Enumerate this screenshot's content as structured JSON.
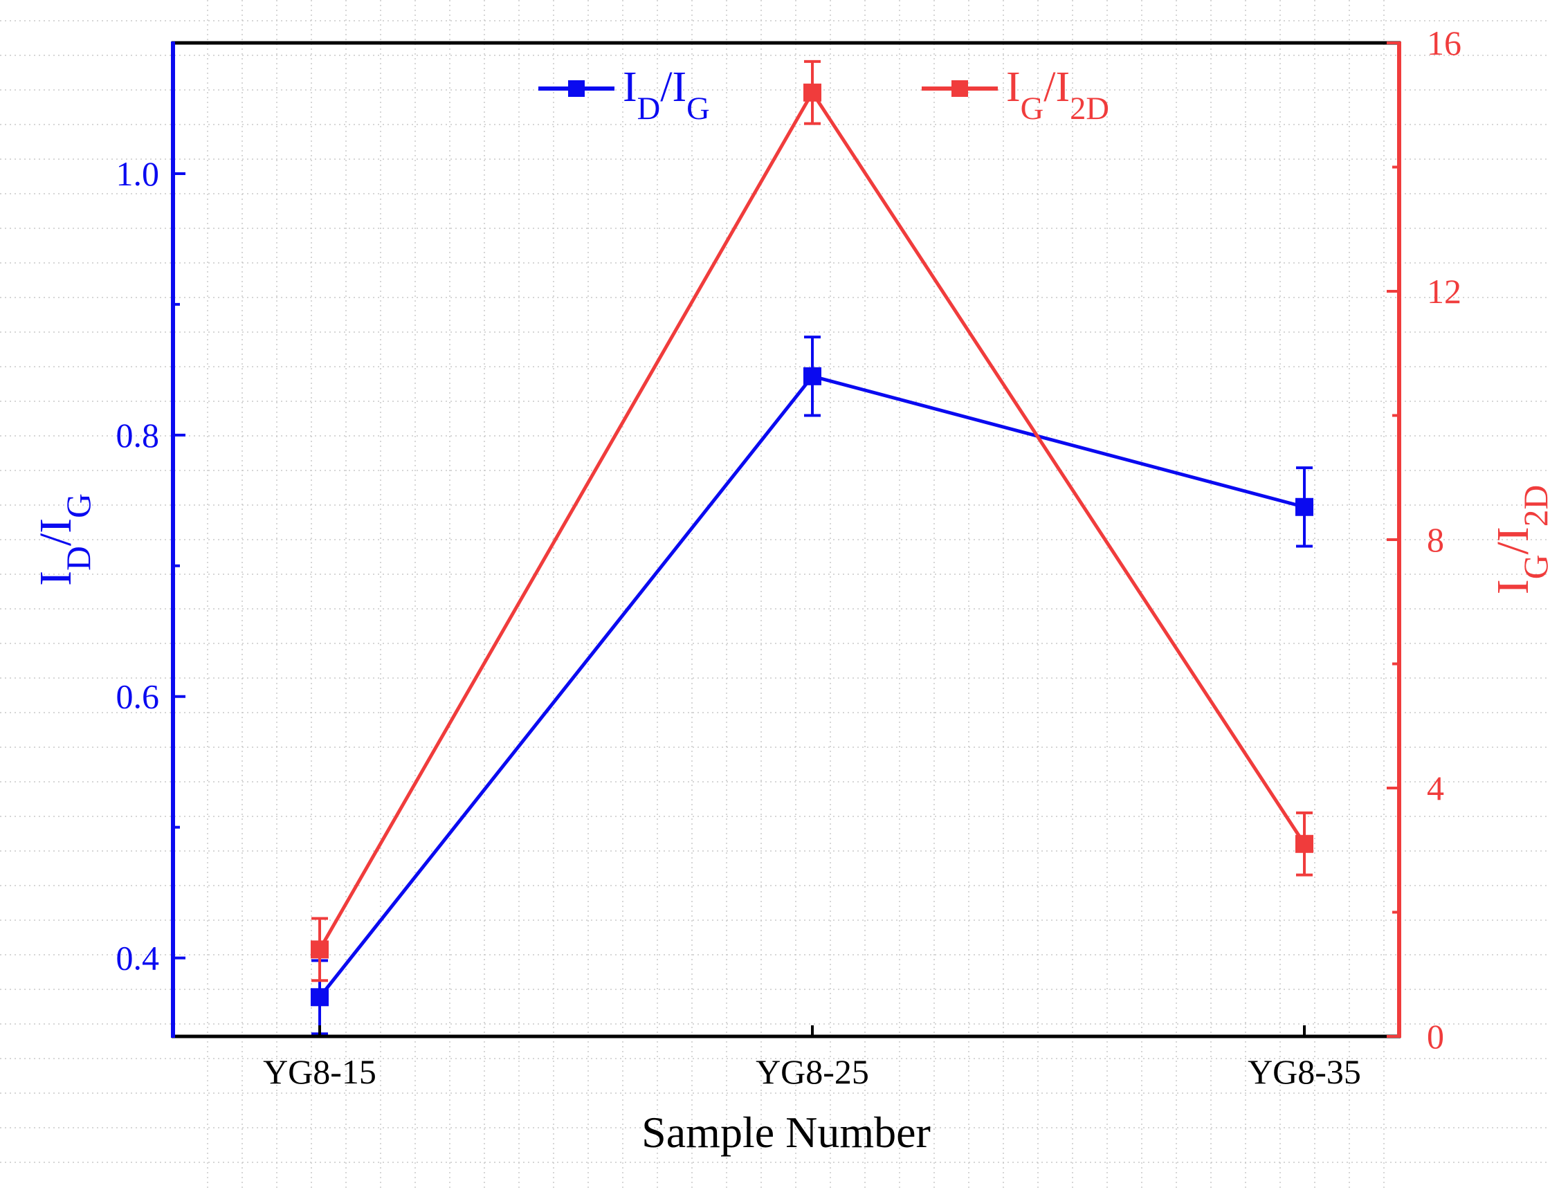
{
  "chart_data": {
    "type": "line",
    "xlabel": "Sample Number",
    "categories": [
      "YG8-15",
      "YG8-25",
      "YG8-35"
    ],
    "left_axis": {
      "label_main": "I",
      "label_sub1": "D",
      "label_sep": "/I",
      "label_sub2": "G",
      "ylim": [
        0.34,
        1.1
      ],
      "major_ticks": [
        0.4,
        0.6,
        0.8,
        1.0
      ],
      "tick_labels": [
        "0.4",
        "0.6",
        "0.8",
        "1.0"
      ],
      "minor_ticks": [
        0.5,
        0.7,
        0.9
      ],
      "color": "#0a0af0"
    },
    "right_axis": {
      "label_main": "I",
      "label_sub1": "G",
      "label_sep": "/I",
      "label_sub2": "2D",
      "ylim": [
        0,
        16
      ],
      "major_ticks": [
        0,
        4,
        8,
        12,
        16
      ],
      "tick_labels": [
        "0",
        "4",
        "8",
        "12",
        "16"
      ],
      "minor_ticks": [
        2,
        6,
        10,
        14
      ],
      "color": "#f03c3c"
    },
    "series": [
      {
        "name": "ID/IG",
        "legend_main": "I",
        "legend_sub1": "D",
        "legend_sep": "/I",
        "legend_sub2": "G",
        "axis": "left",
        "color": "#0a0af0",
        "values": [
          0.37,
          0.845,
          0.745
        ],
        "errors": [
          0.028,
          0.03,
          0.03
        ]
      },
      {
        "name": "IG/I2D",
        "legend_main": "I",
        "legend_sub1": "G",
        "legend_sep": "/I",
        "legend_sub2": "2D",
        "axis": "right",
        "color": "#f03c3c",
        "values": [
          1.4,
          15.2,
          3.1
        ],
        "errors": [
          0.5,
          0.5,
          0.5
        ]
      }
    ]
  }
}
